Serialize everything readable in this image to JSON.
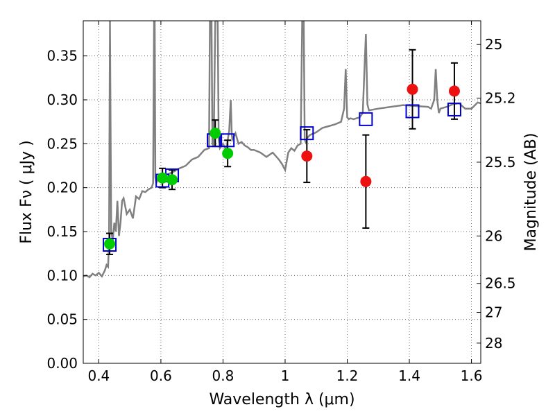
{
  "chart_data": {
    "type": "scatter",
    "xlabel": "Wavelength  λ (μm)",
    "ylabel": "Flux  Fν  ( μJy )",
    "ylabel_right": "Magnitude (AB)",
    "xlim": [
      0.35,
      1.63
    ],
    "ylim": [
      0.0,
      0.39
    ],
    "grid": true,
    "x_ticks": [
      "0.4",
      "0.6",
      "0.8",
      "1",
      "1.2",
      "1.4",
      "1.6"
    ],
    "x_tick_values": [
      0.4,
      0.6,
      0.8,
      1.0,
      1.2,
      1.4,
      1.6
    ],
    "y_ticks": [
      "0.00",
      "0.05",
      "0.10",
      "0.15",
      "0.20",
      "0.25",
      "0.30",
      "0.35"
    ],
    "y_tick_values": [
      0.0,
      0.05,
      0.1,
      0.15,
      0.2,
      0.25,
      0.3,
      0.35
    ],
    "right_ticks": [
      {
        "label": "25",
        "flux": 0.363
      },
      {
        "label": "25.2",
        "flux": 0.302
      },
      {
        "label": "25.5",
        "flux": 0.229
      },
      {
        "label": "26",
        "flux": 0.145
      },
      {
        "label": "26.5",
        "flux": 0.091
      },
      {
        "label": "27",
        "flux": 0.058
      },
      {
        "label": "28",
        "flux": 0.023
      }
    ],
    "colors": {
      "spectrum": "#808080",
      "green": "#00cc00",
      "red": "#ee1111",
      "model_box": "#0000cc",
      "errorbar": "#000000"
    },
    "spectrum": {
      "x": [
        0.35,
        0.36,
        0.37,
        0.38,
        0.39,
        0.4,
        0.41,
        0.42,
        0.425,
        0.43,
        0.433,
        0.436,
        0.44,
        0.445,
        0.45,
        0.455,
        0.46,
        0.465,
        0.47,
        0.475,
        0.48,
        0.49,
        0.5,
        0.51,
        0.52,
        0.53,
        0.54,
        0.55,
        0.56,
        0.57,
        0.575,
        0.578,
        0.58,
        0.582,
        0.585,
        0.59,
        0.6,
        0.62,
        0.64,
        0.66,
        0.68,
        0.7,
        0.72,
        0.74,
        0.755,
        0.758,
        0.76,
        0.763,
        0.766,
        0.77,
        0.775,
        0.78,
        0.783,
        0.786,
        0.79,
        0.8,
        0.81,
        0.82,
        0.825,
        0.828,
        0.83,
        0.84,
        0.85,
        0.86,
        0.87,
        0.88,
        0.89,
        0.9,
        0.92,
        0.94,
        0.96,
        0.98,
        0.99,
        1.0,
        1.01,
        1.02,
        1.03,
        1.04,
        1.05,
        1.055,
        1.058,
        1.06,
        1.063,
        1.066,
        1.07,
        1.08,
        1.1,
        1.12,
        1.14,
        1.16,
        1.18,
        1.19,
        1.195,
        1.2,
        1.205,
        1.21,
        1.22,
        1.24,
        1.25,
        1.255,
        1.26,
        1.265,
        1.27,
        1.3,
        1.34,
        1.38,
        1.42,
        1.46,
        1.47,
        1.48,
        1.485,
        1.49,
        1.495,
        1.5,
        1.52,
        1.54,
        1.56,
        1.58,
        1.6,
        1.62,
        1.63
      ],
      "y": [
        0.099,
        0.1,
        0.098,
        0.102,
        0.1,
        0.103,
        0.099,
        0.106,
        0.112,
        0.11,
        0.14,
        0.39,
        0.15,
        0.14,
        0.16,
        0.15,
        0.185,
        0.145,
        0.16,
        0.185,
        0.188,
        0.17,
        0.175,
        0.165,
        0.19,
        0.187,
        0.196,
        0.195,
        0.198,
        0.2,
        0.205,
        0.39,
        0.39,
        0.212,
        0.205,
        0.21,
        0.212,
        0.215,
        0.218,
        0.222,
        0.225,
        0.232,
        0.235,
        0.243,
        0.245,
        0.39,
        0.39,
        0.39,
        0.25,
        0.247,
        0.39,
        0.39,
        0.39,
        0.255,
        0.245,
        0.25,
        0.243,
        0.265,
        0.3,
        0.262,
        0.255,
        0.262,
        0.25,
        0.252,
        0.248,
        0.246,
        0.243,
        0.243,
        0.24,
        0.235,
        0.24,
        0.232,
        0.227,
        0.22,
        0.24,
        0.245,
        0.242,
        0.248,
        0.25,
        0.39,
        0.39,
        0.39,
        0.255,
        0.252,
        0.256,
        0.26,
        0.263,
        0.268,
        0.27,
        0.272,
        0.275,
        0.29,
        0.335,
        0.28,
        0.278,
        0.279,
        0.278,
        0.28,
        0.285,
        0.33,
        0.375,
        0.295,
        0.288,
        0.29,
        0.292,
        0.294,
        0.293,
        0.292,
        0.29,
        0.3,
        0.335,
        0.3,
        0.285,
        0.29,
        0.292,
        0.295,
        0.296,
        0.29,
        0.29,
        0.297,
        0.296
      ]
    },
    "green_points": [
      {
        "x": 0.435,
        "y": 0.136,
        "err": 0.012
      },
      {
        "x": 0.605,
        "y": 0.211,
        "err": 0.011
      },
      {
        "x": 0.636,
        "y": 0.209,
        "err": 0.011
      },
      {
        "x": 0.775,
        "y": 0.262,
        "err": 0.015
      },
      {
        "x": 0.815,
        "y": 0.239,
        "err": 0.015
      }
    ],
    "red_points": [
      {
        "x": 1.07,
        "y": 0.236,
        "err": 0.03
      },
      {
        "x": 1.26,
        "y": 0.207,
        "err": 0.053
      },
      {
        "x": 1.41,
        "y": 0.312,
        "err": 0.045
      },
      {
        "x": 1.545,
        "y": 0.31,
        "err": 0.032
      }
    ],
    "model_boxes": [
      {
        "x": 0.435,
        "y": 0.135
      },
      {
        "x": 0.605,
        "y": 0.208
      },
      {
        "x": 0.636,
        "y": 0.214
      },
      {
        "x": 0.77,
        "y": 0.254
      },
      {
        "x": 0.815,
        "y": 0.254
      },
      {
        "x": 1.07,
        "y": 0.262
      },
      {
        "x": 1.26,
        "y": 0.278
      },
      {
        "x": 1.41,
        "y": 0.287
      },
      {
        "x": 1.545,
        "y": 0.289
      }
    ]
  }
}
